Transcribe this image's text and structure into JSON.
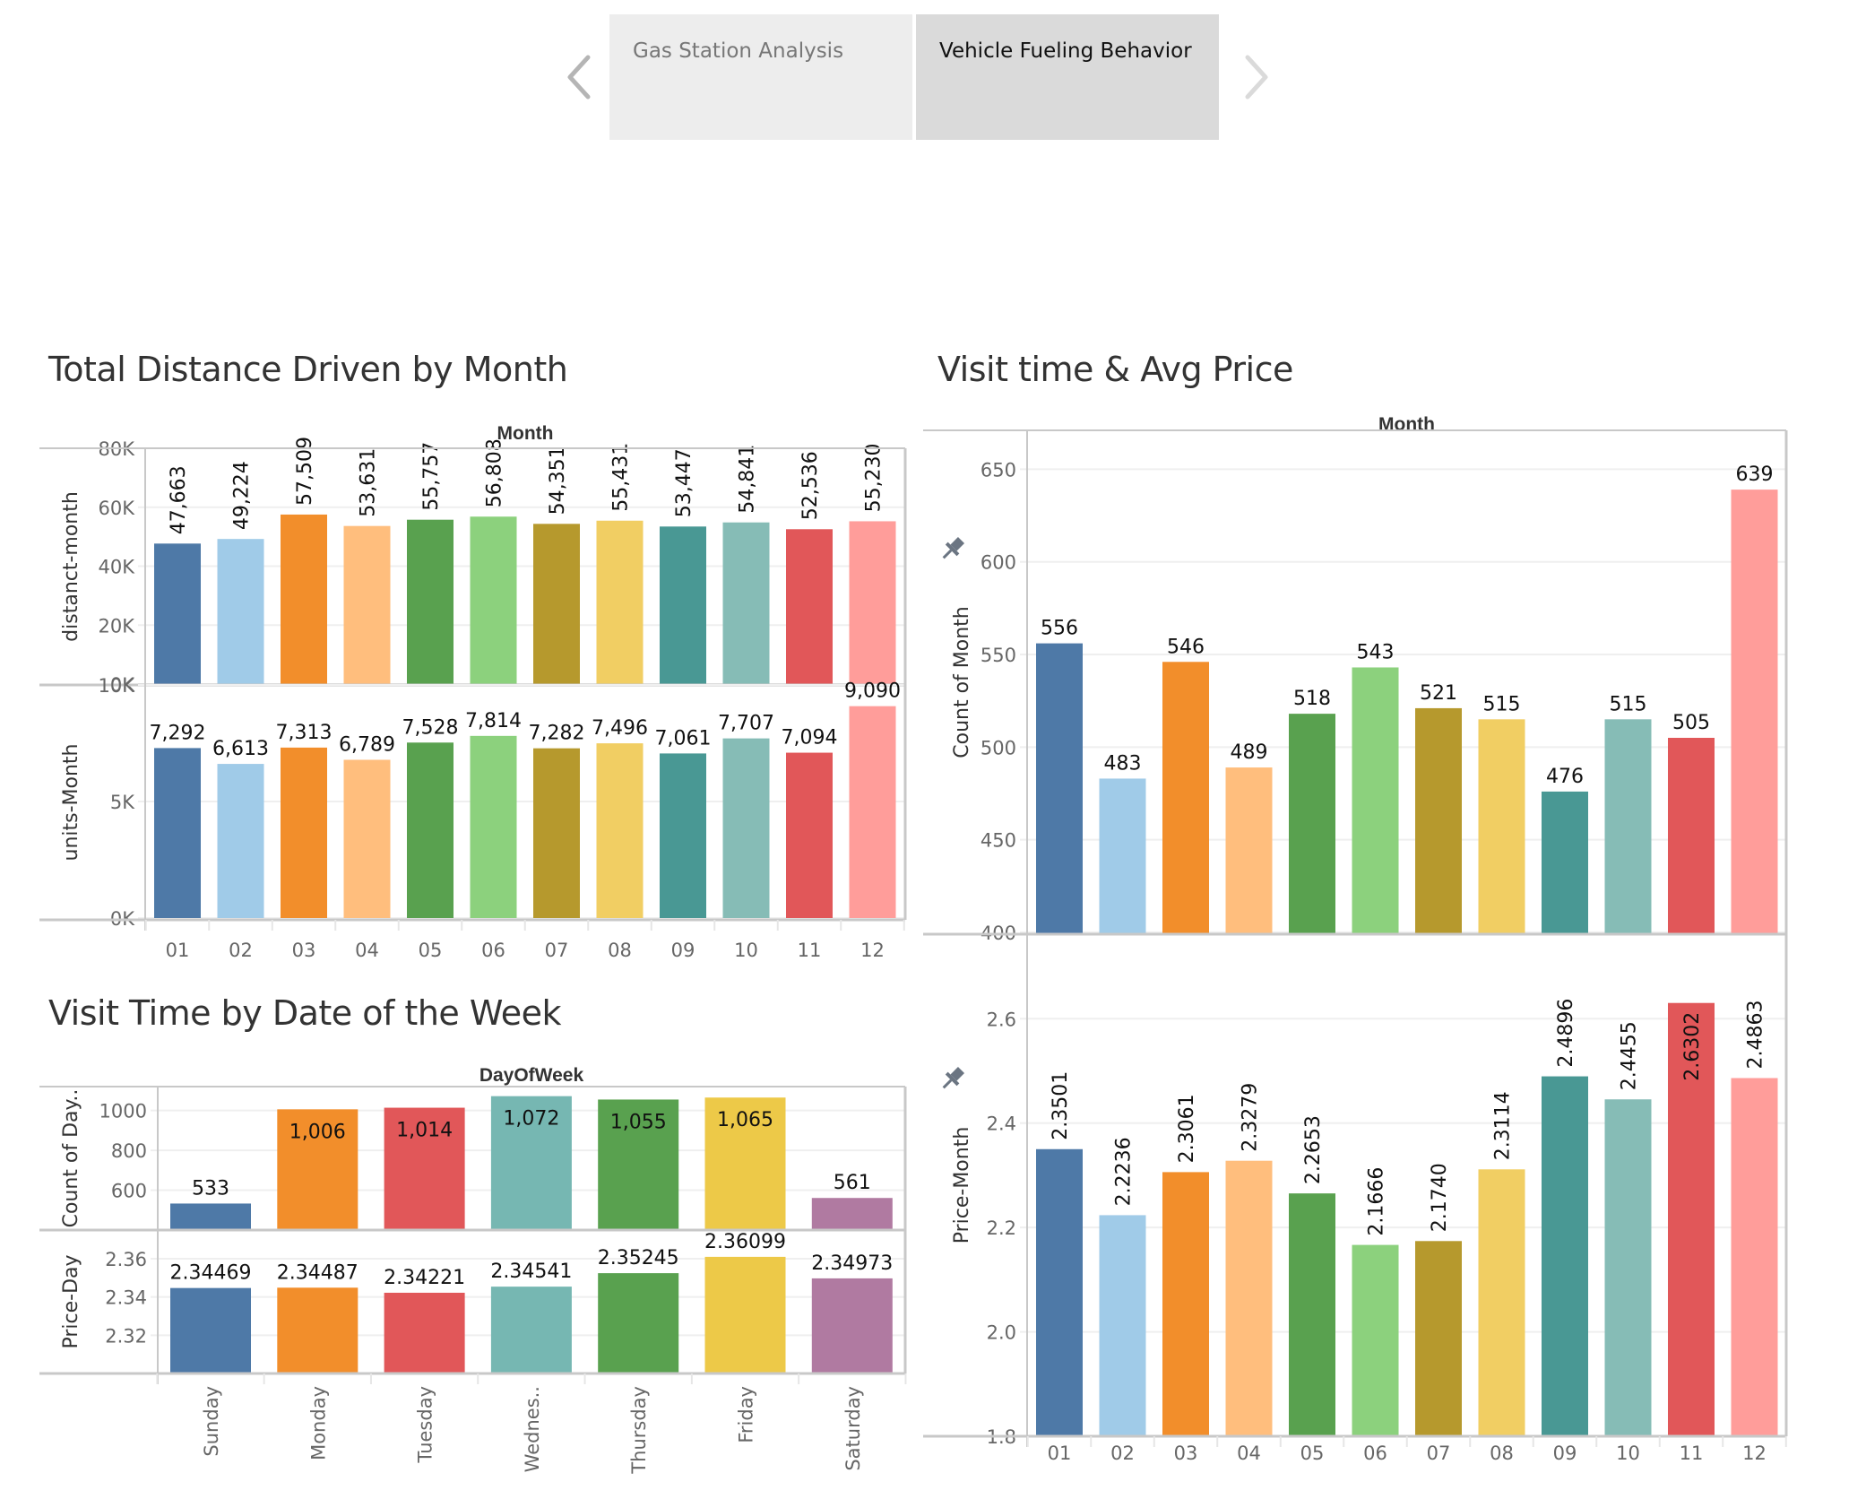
{
  "nav": {
    "prev_icon": "chevron-left-icon",
    "next_icon": "chevron-right-icon",
    "tabs": [
      {
        "label": "Gas Station Analysis",
        "active": false
      },
      {
        "label": "Vehicle Fueling Behavior",
        "active": true
      }
    ]
  },
  "colors": {
    "month": [
      "#4e79a7",
      "#a0cbe8",
      "#f28e2b",
      "#ffbe7d",
      "#59a14f",
      "#8cd17d",
      "#b6992d",
      "#f1ce63",
      "#499894",
      "#86bcb6",
      "#e15759",
      "#ff9d9a"
    ],
    "day": [
      "#4e79a7",
      "#f28e2b",
      "#e15759",
      "#76b7b2",
      "#59a14f",
      "#edc948",
      "#b07aa1"
    ],
    "frame": "#c8c8c8",
    "grid": "#efefef"
  },
  "chart_data": [
    {
      "id": "distance",
      "type": "bar",
      "title": "Total Distance Driven by Month",
      "column_header": "Month",
      "categories": [
        "01",
        "02",
        "03",
        "04",
        "05",
        "06",
        "07",
        "08",
        "09",
        "10",
        "11",
        "12"
      ],
      "panes": [
        {
          "ylabel": "distanct-month",
          "values": [
            47663,
            49224,
            57509,
            53631,
            55757,
            56808,
            54351,
            55431,
            53447,
            54841,
            52536,
            55230
          ],
          "labels": [
            "47,663",
            "49,224",
            "57,509",
            "53,631",
            "55,757",
            "56,808",
            "54,351",
            "55,431",
            "53,447",
            "54,841",
            "52,536",
            "55,230"
          ],
          "label_rotation": "vertical",
          "ylim": [
            0,
            80000
          ],
          "ticks": [
            0,
            20000,
            40000,
            60000,
            80000
          ],
          "tick_labels": [
            "0K",
            "20K",
            "40K",
            "60K",
            "80K"
          ]
        },
        {
          "ylabel": "units-Month",
          "values": [
            7292,
            6613,
            7313,
            6789,
            7528,
            7814,
            7282,
            7496,
            7061,
            7707,
            7094,
            9090
          ],
          "labels": [
            "7,292",
            "6,613",
            "7,313",
            "6,789",
            "7,528",
            "7,814",
            "7,282",
            "7,496",
            "7,061",
            "7,707",
            "7,094",
            "9,090"
          ],
          "label_rotation": "horizontal",
          "ylim": [
            0,
            10000
          ],
          "ticks": [
            0,
            5000,
            10000
          ],
          "tick_labels": [
            "0K",
            "5K",
            "10K"
          ]
        }
      ],
      "grid": true
    },
    {
      "id": "week",
      "type": "bar",
      "title": "Visit Time by Date of the Week",
      "column_header": "DayOfWeek",
      "categories": [
        "Sunday",
        "Monday",
        "Tuesday",
        "Wednes..",
        "Thursday",
        "Friday",
        "Saturday"
      ],
      "panes": [
        {
          "ylabel": "Count of Day..",
          "values": [
            533,
            1006,
            1014,
            1072,
            1055,
            1065,
            561
          ],
          "labels": [
            "533",
            "1,006",
            "1,014",
            "1,072",
            "1,055",
            "1,065",
            "561"
          ],
          "label_inside": [
            false,
            true,
            true,
            true,
            true,
            true,
            false
          ],
          "label_colors": [
            "#111111",
            "#111111",
            "#ffffff",
            "#111111",
            "#ffffff",
            "#111111",
            "#111111"
          ],
          "ylim": [
            400,
            1120
          ],
          "ticks": [
            600,
            800,
            1000
          ],
          "tick_labels": [
            "600",
            "800",
            "1000"
          ]
        },
        {
          "ylabel": "Price-Day",
          "values": [
            2.34469,
            2.34487,
            2.34221,
            2.34541,
            2.35245,
            2.36099,
            2.34973
          ],
          "labels": [
            "2.34469",
            "2.34487",
            "2.34221",
            "2.34541",
            "2.35245",
            "2.36099",
            "2.34973"
          ],
          "ylim": [
            2.3,
            2.375
          ],
          "ticks": [
            2.32,
            2.34,
            2.36
          ],
          "tick_labels": [
            "2.32",
            "2.34",
            "2.36"
          ]
        }
      ],
      "grid": true
    },
    {
      "id": "visits",
      "type": "bar",
      "title": "Visit time & Avg Price",
      "column_header": "Month",
      "categories": [
        "01",
        "02",
        "03",
        "04",
        "05",
        "06",
        "07",
        "08",
        "09",
        "10",
        "11",
        "12"
      ],
      "panes": [
        {
          "ylabel": "Count of Month",
          "pinned": true,
          "values": [
            556,
            483,
            546,
            489,
            518,
            543,
            521,
            515,
            476,
            515,
            505,
            639
          ],
          "labels": [
            "556",
            "483",
            "546",
            "489",
            "518",
            "543",
            "521",
            "515",
            "476",
            "515",
            "505",
            "639"
          ],
          "ylim": [
            399,
            671
          ],
          "ticks": [
            400,
            450,
            500,
            550,
            600,
            650
          ],
          "tick_labels": [
            "400",
            "450",
            "500",
            "550",
            "600",
            "650"
          ]
        },
        {
          "ylabel": "Price-Month",
          "pinned": true,
          "values": [
            2.3501,
            2.2236,
            2.3061,
            2.3279,
            2.2653,
            2.1666,
            2.174,
            2.3114,
            2.4896,
            2.4455,
            2.6302,
            2.4863
          ],
          "labels": [
            "2.3501",
            "2.2236",
            "2.3061",
            "2.3279",
            "2.2653",
            "2.1666",
            "2.1740",
            "2.3114",
            "2.4896",
            "2.4455",
            "2.6302",
            "2.4863"
          ],
          "label_inside": [
            false,
            false,
            false,
            false,
            false,
            false,
            false,
            false,
            false,
            false,
            true,
            false
          ],
          "ylim": [
            1.8,
            2.762
          ],
          "ticks": [
            1.8,
            2.0,
            2.2,
            2.4,
            2.6
          ],
          "tick_labels": [
            "1.8",
            "2.0",
            "2.2",
            "2.4",
            "2.6"
          ]
        }
      ],
      "grid": true
    }
  ]
}
